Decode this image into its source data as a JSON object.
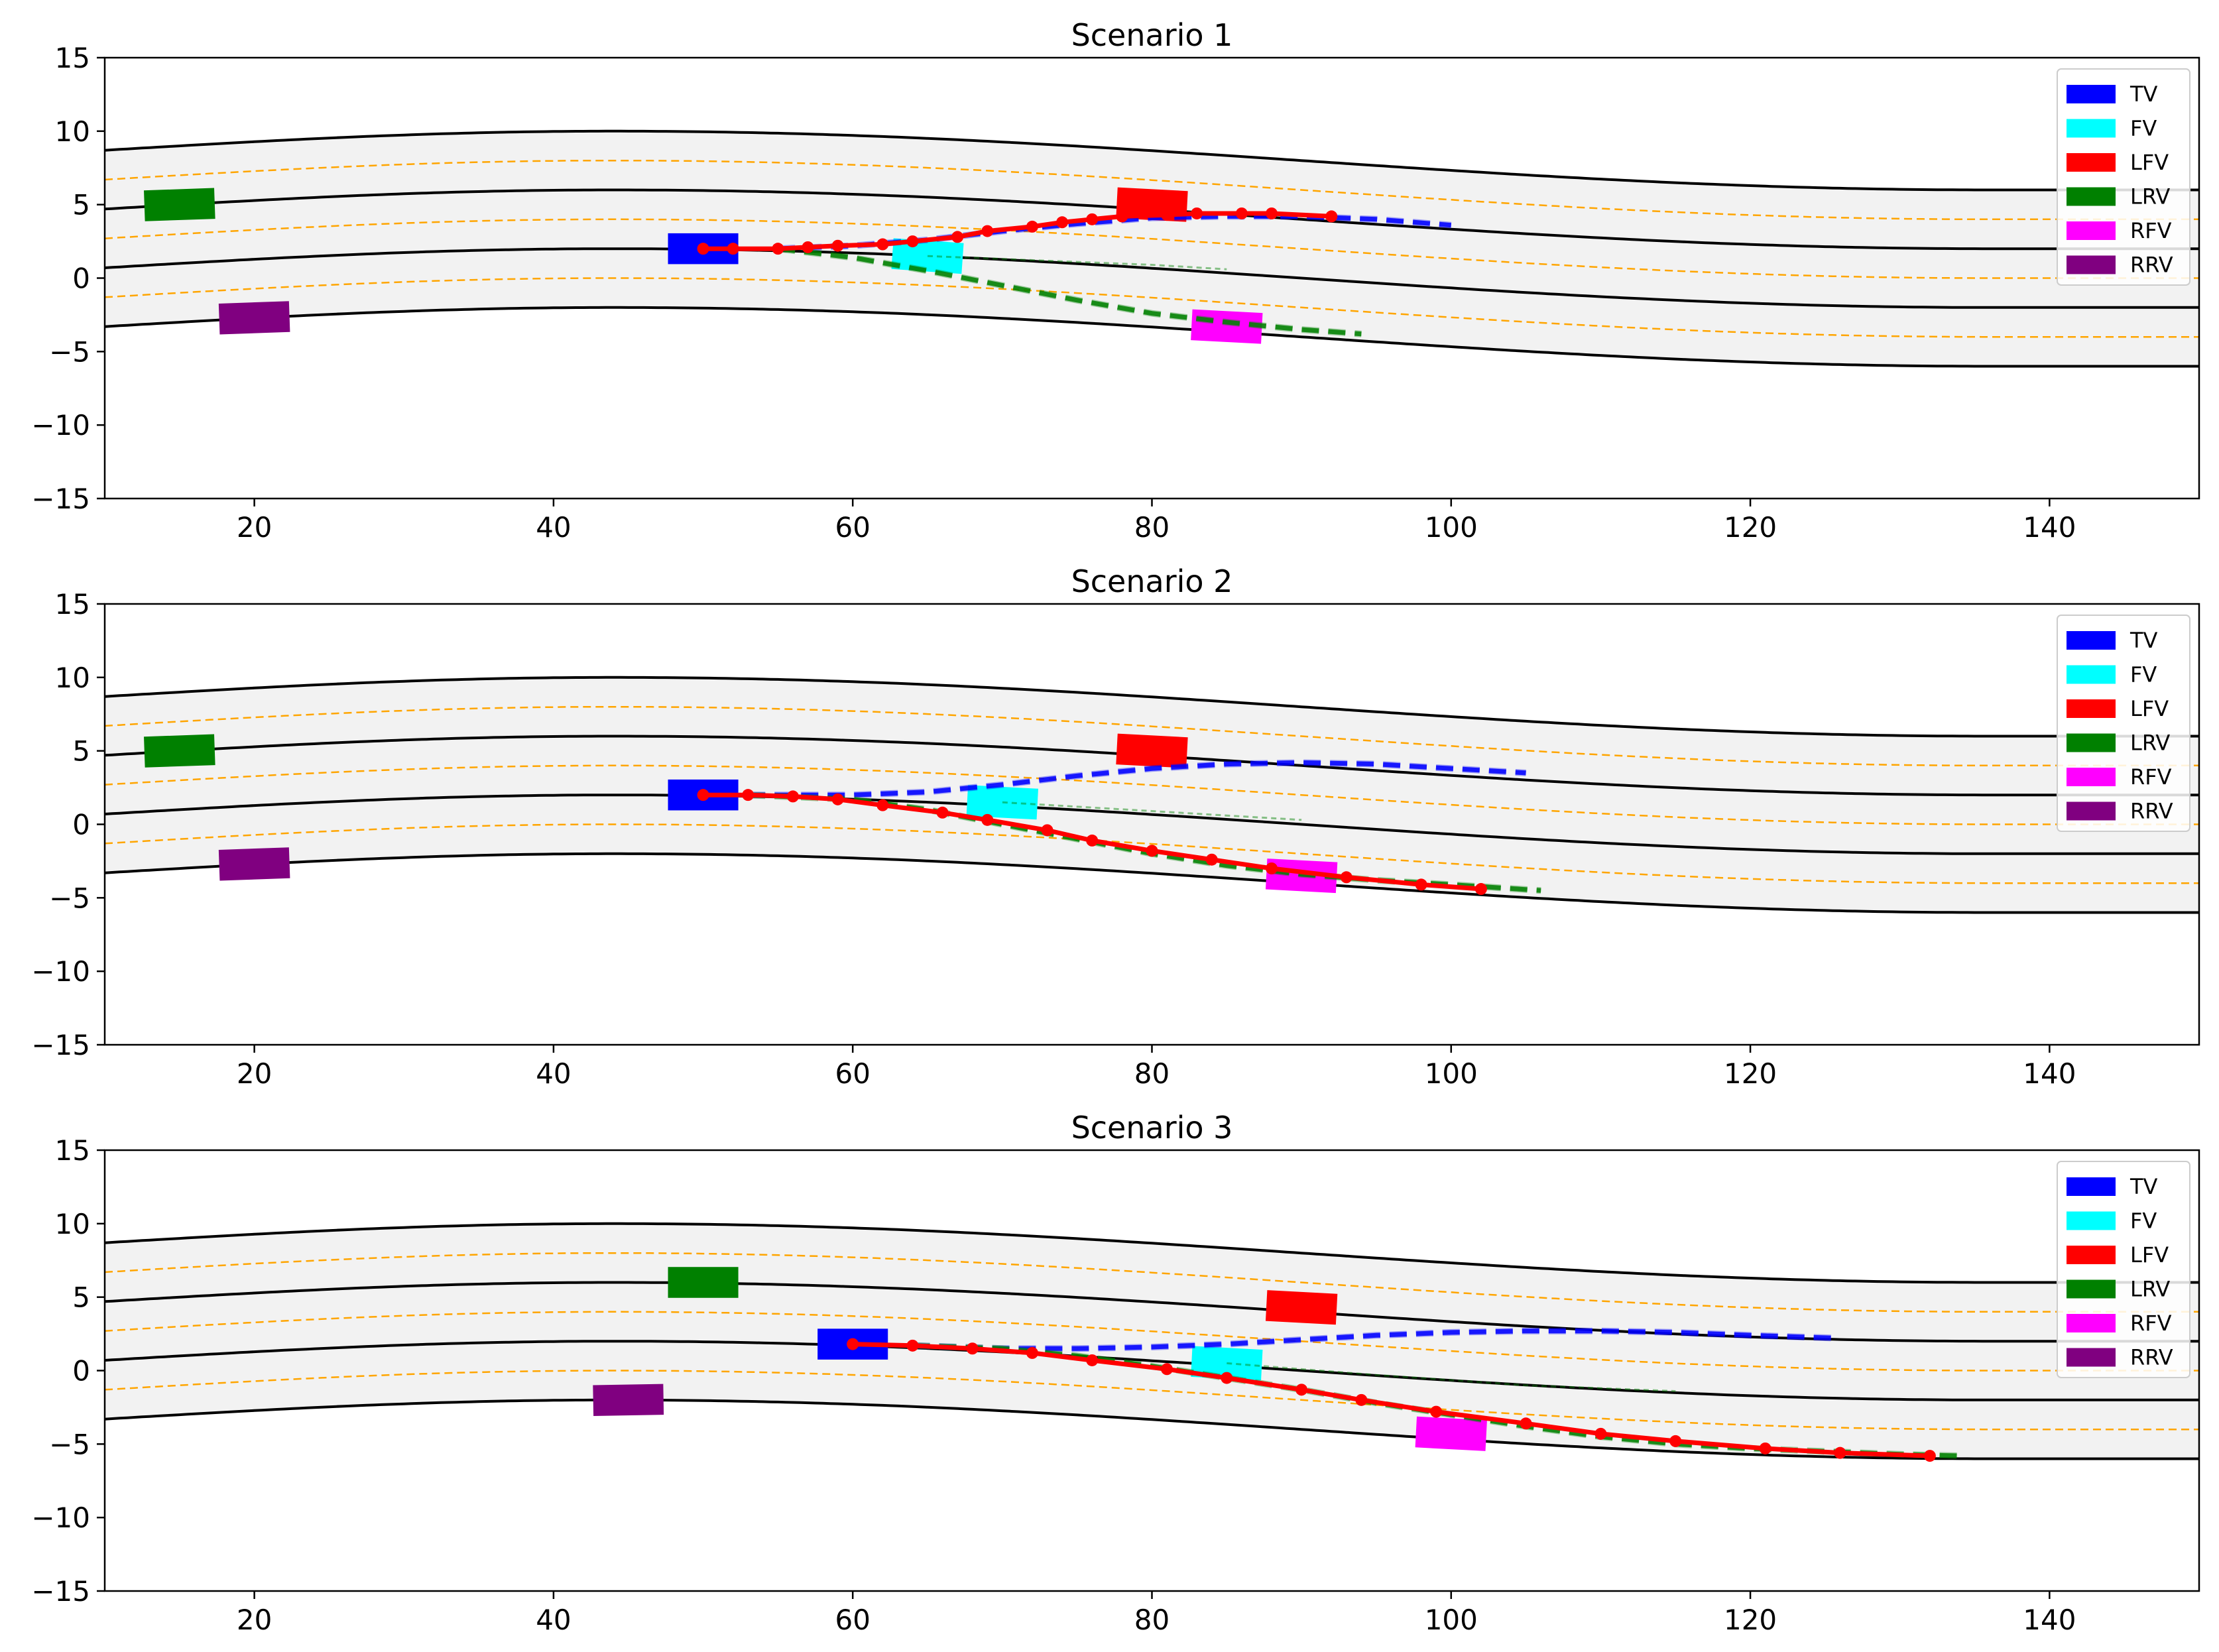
{
  "figure": {
    "description_note": "Three stacked lane-change scenario plots sharing one style",
    "colors": {
      "road_fill": "#f2f2f2",
      "lane_boundary": "#000000",
      "centerline": "#ffa500",
      "tv_prediction": "#0000ff",
      "rrv_prediction": "#008000",
      "planned_trajectory": "#ff0000"
    }
  },
  "chart_data": [
    {
      "type": "trajectory",
      "title": "Scenario 1",
      "xlim": [
        10,
        150
      ],
      "ylim": [
        -15,
        15
      ],
      "xticks": [
        20,
        40,
        60,
        80,
        100,
        120,
        140
      ],
      "yticks": [
        15,
        10,
        5,
        0,
        -5,
        -10,
        -15
      ],
      "road": {
        "lane_center_offsets": [
          6,
          2,
          -2
        ],
        "lane_width": 4,
        "curve": {
          "x_start": 10,
          "y_start": 0.7,
          "y_peak": 2.0,
          "x_peak": 44,
          "y_end": -2.0,
          "x_flat": 136
        }
      },
      "legend": {
        "position": "top-right",
        "entries": [
          {
            "label": "TV",
            "color": "#0000ff"
          },
          {
            "label": "FV",
            "color": "#00ffff"
          },
          {
            "label": "LFV",
            "color": "#ff0000"
          },
          {
            "label": "LRV",
            "color": "#008000"
          },
          {
            "label": "RFV",
            "color": "#ff00ff"
          },
          {
            "label": "RRV",
            "color": "#800080"
          }
        ]
      },
      "vehicles": [
        {
          "id": "TV",
          "x": 50,
          "y": 2.0,
          "angle": 0,
          "color": "#0000ff"
        },
        {
          "id": "FV",
          "x": 65,
          "y": 1.5,
          "angle": 4,
          "color": "#00ffff"
        },
        {
          "id": "LFV",
          "x": 80,
          "y": 5.0,
          "angle": 3,
          "color": "#ff0000"
        },
        {
          "id": "LRV",
          "x": 15,
          "y": 5.0,
          "angle": -2,
          "color": "#008000"
        },
        {
          "id": "RFV",
          "x": 85,
          "y": -3.3,
          "angle": 3,
          "color": "#ff00ff"
        },
        {
          "id": "RRV",
          "x": 20,
          "y": -2.7,
          "angle": -2,
          "color": "#800080"
        }
      ],
      "predictions": [
        {
          "name": "TV left-lane prediction",
          "color": "#0000ff",
          "x": [
            55,
            60,
            65,
            70,
            75,
            80,
            85,
            90,
            95,
            100
          ],
          "y": [
            2.0,
            2.2,
            2.6,
            3.2,
            3.7,
            4.1,
            4.2,
            4.2,
            4.0,
            3.6
          ]
        },
        {
          "name": "FV prediction",
          "color": "#008000",
          "x": [
            65,
            70,
            75,
            80,
            85
          ],
          "y": [
            1.5,
            1.3,
            1.1,
            0.9,
            0.6
          ]
        },
        {
          "name": "Right-lane prediction",
          "color": "#008000",
          "x": [
            55,
            60,
            65,
            70,
            75,
            80,
            85,
            90,
            94
          ],
          "y": [
            2.0,
            1.4,
            0.5,
            -0.5,
            -1.5,
            -2.4,
            -3.0,
            -3.5,
            -3.8
          ]
        }
      ],
      "planned": {
        "color": "#ff0000",
        "x": [
          50,
          52,
          55,
          57,
          59,
          62,
          64,
          67,
          69,
          72,
          74,
          76,
          78,
          81,
          83,
          86,
          88,
          92
        ],
        "y": [
          2.0,
          2.0,
          2.0,
          2.1,
          2.2,
          2.3,
          2.5,
          2.8,
          3.2,
          3.5,
          3.8,
          4.0,
          4.2,
          4.3,
          4.4,
          4.4,
          4.4,
          4.2
        ]
      }
    },
    {
      "type": "trajectory",
      "title": "Scenario 2",
      "xlim": [
        10,
        150
      ],
      "ylim": [
        -15,
        15
      ],
      "xticks": [
        20,
        40,
        60,
        80,
        100,
        120,
        140
      ],
      "yticks": [
        15,
        10,
        5,
        0,
        -5,
        -10,
        -15
      ],
      "road": {
        "lane_center_offsets": [
          6,
          2,
          -2
        ],
        "lane_width": 4,
        "curve": {
          "x_start": 10,
          "y_start": 0.7,
          "y_peak": 2.0,
          "x_peak": 44,
          "y_end": -2.0,
          "x_flat": 136
        }
      },
      "legend": {
        "position": "top-right",
        "entries": [
          {
            "label": "TV",
            "color": "#0000ff"
          },
          {
            "label": "FV",
            "color": "#00ffff"
          },
          {
            "label": "LFV",
            "color": "#ff0000"
          },
          {
            "label": "LRV",
            "color": "#008000"
          },
          {
            "label": "RFV",
            "color": "#ff00ff"
          },
          {
            "label": "RRV",
            "color": "#800080"
          }
        ]
      },
      "vehicles": [
        {
          "id": "TV",
          "x": 50,
          "y": 2.0,
          "angle": 0,
          "color": "#0000ff"
        },
        {
          "id": "FV",
          "x": 70,
          "y": 1.5,
          "angle": 3,
          "color": "#00ffff"
        },
        {
          "id": "LFV",
          "x": 80,
          "y": 5.0,
          "angle": 3,
          "color": "#ff0000"
        },
        {
          "id": "LRV",
          "x": 15,
          "y": 5.0,
          "angle": -2,
          "color": "#008000"
        },
        {
          "id": "RFV",
          "x": 90,
          "y": -3.5,
          "angle": 3,
          "color": "#ff00ff"
        },
        {
          "id": "RRV",
          "x": 20,
          "y": -2.7,
          "angle": -2,
          "color": "#800080"
        }
      ],
      "predictions": [
        {
          "name": "TV left-lane prediction",
          "color": "#0000ff",
          "x": [
            53,
            60,
            65,
            70,
            75,
            80,
            85,
            90,
            95,
            100,
            105
          ],
          "y": [
            2.0,
            2.0,
            2.2,
            2.7,
            3.3,
            3.8,
            4.1,
            4.2,
            4.1,
            3.8,
            3.5
          ]
        },
        {
          "name": "FV prediction",
          "color": "#008000",
          "x": [
            70,
            75,
            80,
            85,
            90
          ],
          "y": [
            1.5,
            1.2,
            0.9,
            0.6,
            0.3
          ]
        },
        {
          "name": "Right-lane prediction",
          "color": "#008000",
          "x": [
            53,
            60,
            65,
            70,
            75,
            80,
            85,
            90,
            95,
            100,
            106
          ],
          "y": [
            2.0,
            1.7,
            1.0,
            0.0,
            -1.0,
            -2.0,
            -2.8,
            -3.4,
            -3.8,
            -4.1,
            -4.5
          ]
        }
      ],
      "planned": {
        "color": "#ff0000",
        "x": [
          50,
          53,
          56,
          59,
          62,
          66,
          69,
          73,
          76,
          80,
          84,
          88,
          93,
          98,
          102
        ],
        "y": [
          2.0,
          2.0,
          1.9,
          1.7,
          1.3,
          0.8,
          0.3,
          -0.4,
          -1.1,
          -1.8,
          -2.4,
          -3.0,
          -3.6,
          -4.1,
          -4.4
        ]
      }
    },
    {
      "type": "trajectory",
      "title": "Scenario 3",
      "xlim": [
        10,
        150
      ],
      "ylim": [
        -15,
        15
      ],
      "xticks": [
        20,
        40,
        60,
        80,
        100,
        120,
        140
      ],
      "yticks": [
        15,
        10,
        5,
        0,
        -5,
        -10,
        -15
      ],
      "road": {
        "lane_center_offsets": [
          6,
          2,
          -2
        ],
        "lane_width": 4,
        "curve": {
          "x_start": 10,
          "y_start": 0.7,
          "y_peak": 2.0,
          "x_peak": 44,
          "y_end": -2.0,
          "x_flat": 136
        }
      },
      "legend": {
        "position": "top-right",
        "entries": [
          {
            "label": "TV",
            "color": "#0000ff"
          },
          {
            "label": "FV",
            "color": "#00ffff"
          },
          {
            "label": "LFV",
            "color": "#ff0000"
          },
          {
            "label": "LRV",
            "color": "#008000"
          },
          {
            "label": "RFV",
            "color": "#ff00ff"
          },
          {
            "label": "RRV",
            "color": "#800080"
          }
        ]
      },
      "vehicles": [
        {
          "id": "TV",
          "x": 60,
          "y": 1.8,
          "angle": 0,
          "color": "#0000ff"
        },
        {
          "id": "FV",
          "x": 85,
          "y": 0.5,
          "angle": 3,
          "color": "#00ffff"
        },
        {
          "id": "LFV",
          "x": 90,
          "y": 4.3,
          "angle": 3,
          "color": "#ff0000"
        },
        {
          "id": "LRV",
          "x": 50,
          "y": 6.0,
          "angle": 0,
          "color": "#008000"
        },
        {
          "id": "RFV",
          "x": 100,
          "y": -4.3,
          "angle": 3,
          "color": "#ff00ff"
        },
        {
          "id": "RRV",
          "x": 45,
          "y": -2.0,
          "angle": -1,
          "color": "#800080"
        }
      ],
      "predictions": [
        {
          "name": "TV left-lane prediction",
          "color": "#0000ff",
          "x": [
            64,
            70,
            75,
            80,
            85,
            90,
            95,
            100,
            105,
            110,
            115,
            120,
            126
          ],
          "y": [
            1.7,
            1.5,
            1.5,
            1.6,
            1.8,
            2.1,
            2.4,
            2.6,
            2.7,
            2.7,
            2.6,
            2.4,
            2.2
          ]
        },
        {
          "name": "FV prediction",
          "color": "#008000",
          "x": [
            85,
            95,
            105,
            115
          ],
          "y": [
            0.5,
            -0.3,
            -1.0,
            -1.4
          ]
        },
        {
          "name": "Right-lane prediction",
          "color": "#008000",
          "x": [
            64,
            70,
            75,
            80,
            85,
            90,
            95,
            100,
            105,
            110,
            115,
            120,
            125,
            130,
            134
          ],
          "y": [
            1.7,
            1.5,
            1.0,
            0.3,
            -0.5,
            -1.3,
            -2.2,
            -3.0,
            -3.8,
            -4.5,
            -5.0,
            -5.3,
            -5.5,
            -5.7,
            -5.8
          ]
        }
      ],
      "planned": {
        "color": "#ff0000",
        "x": [
          60,
          64,
          68,
          72,
          76,
          81,
          85,
          90,
          94,
          99,
          105,
          110,
          115,
          121,
          126,
          132
        ],
        "y": [
          1.8,
          1.7,
          1.5,
          1.2,
          0.7,
          0.1,
          -0.5,
          -1.3,
          -2.0,
          -2.8,
          -3.6,
          -4.3,
          -4.8,
          -5.3,
          -5.6,
          -5.8
        ]
      }
    }
  ]
}
